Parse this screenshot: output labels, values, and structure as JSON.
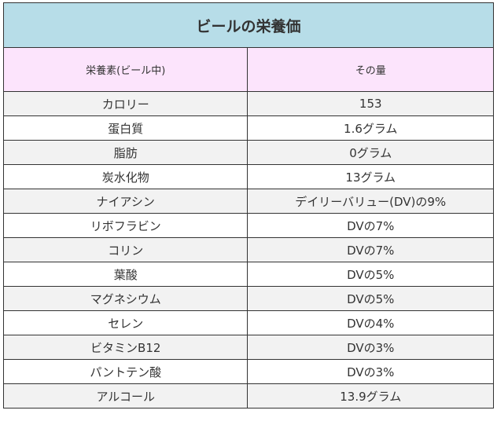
{
  "title": "ビールの栄養価",
  "headers": {
    "nutrient": "栄養素(ビール中)",
    "amount": "その量"
  },
  "rows": [
    {
      "nutrient": "カロリー",
      "amount": "153"
    },
    {
      "nutrient": "蛋白質",
      "amount": "1.6グラム"
    },
    {
      "nutrient": "脂肪",
      "amount": "0グラム"
    },
    {
      "nutrient": "炭水化物",
      "amount": "13グラム"
    },
    {
      "nutrient": "ナイアシン",
      "amount": "デイリーバリュー(DV)の9%"
    },
    {
      "nutrient": "リボフラビン",
      "amount": "DVの7%"
    },
    {
      "nutrient": "コリン",
      "amount": "DVの7%"
    },
    {
      "nutrient": "葉酸",
      "amount": "DVの5%"
    },
    {
      "nutrient": "マグネシウム",
      "amount": "DVの5%"
    },
    {
      "nutrient": "セレン",
      "amount": "DVの4%"
    },
    {
      "nutrient": "ビタミンB12",
      "amount": "DVの3%"
    },
    {
      "nutrient": "パントテン酸",
      "amount": "DVの3%"
    },
    {
      "nutrient": "アルコール",
      "amount": "13.9グラム"
    }
  ],
  "colors": {
    "title_bg": "#b7dde8",
    "header_bg": "#fce4fc",
    "stripe_bg": "#f2f2f2",
    "border": "#333333"
  }
}
